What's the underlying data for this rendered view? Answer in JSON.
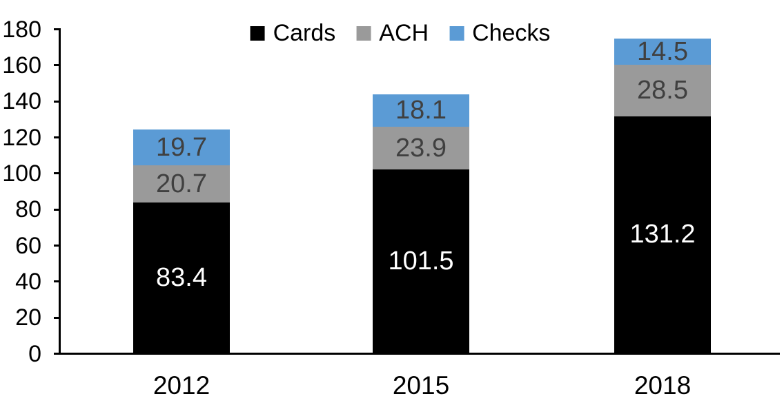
{
  "chart_data": {
    "type": "bar",
    "variant": "stacked-column",
    "title": "",
    "categories": [
      "2012",
      "2015",
      "2018"
    ],
    "series": [
      {
        "name": "Cards",
        "color": "#000000",
        "label_color": "#ffffff",
        "values": [
          83.4,
          101.5,
          131.2
        ]
      },
      {
        "name": "ACH",
        "color": "#9A9A9A",
        "label_color": "#404040",
        "values": [
          20.7,
          23.9,
          28.5
        ]
      },
      {
        "name": "Checks",
        "color": "#5B9BD5",
        "label_color": "#404040",
        "values": [
          19.7,
          18.1,
          14.5
        ]
      }
    ],
    "totals": [
      123.8,
      143.5,
      174.2
    ],
    "ylim": [
      0,
      180
    ],
    "yticks": [
      0,
      20,
      40,
      60,
      80,
      100,
      120,
      140,
      160,
      180
    ],
    "grid": false,
    "legend_position": "top-center",
    "data_labels": true,
    "axis_color": "#000000",
    "background_color": "#ffffff"
  }
}
